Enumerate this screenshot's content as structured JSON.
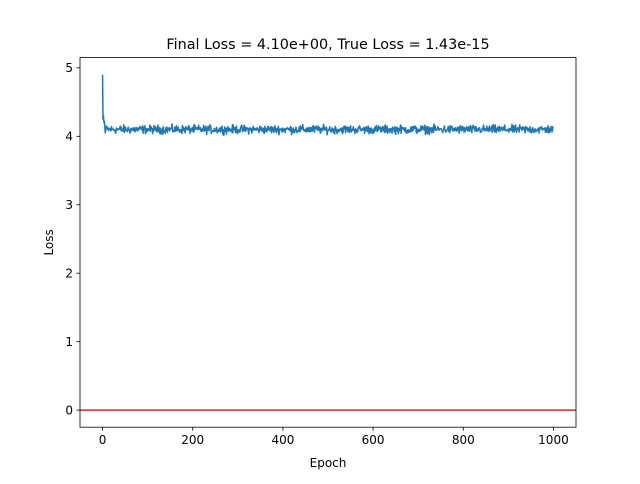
{
  "chart_data": {
    "type": "line",
    "title": "Final Loss = 4.10e+00, True Loss = 1.43e-15",
    "xlabel": "Epoch",
    "ylabel": "Loss",
    "xlim": [
      -50,
      1050
    ],
    "ylim": [
      -0.25,
      5.15
    ],
    "xticks": [
      0,
      200,
      400,
      600,
      800,
      1000
    ],
    "yticks": [
      0,
      1,
      2,
      3,
      4,
      5
    ],
    "grid": false,
    "legend": "none",
    "series": [
      {
        "color": "#1f77b4",
        "x_start": 0,
        "x_end": 999,
        "initial": [
          4.9,
          4.25,
          4.3,
          4.2,
          4.22,
          4.15,
          4.05,
          4.1
        ],
        "plateau_mean": 4.1,
        "plateau_range": [
          3.97,
          4.28
        ]
      },
      {
        "color": "#d62728",
        "kind": "hline",
        "y": 0
      }
    ]
  }
}
